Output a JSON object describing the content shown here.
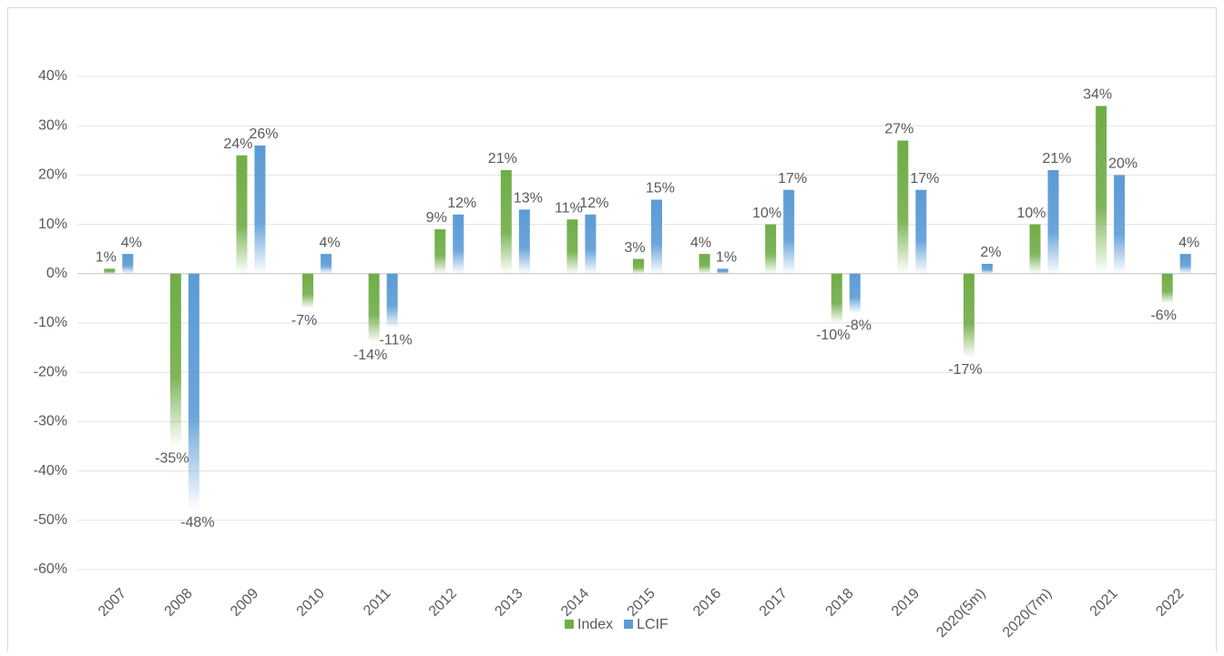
{
  "chart_data": {
    "type": "bar",
    "categories": [
      "2007",
      "2008",
      "2009",
      "2010",
      "2011",
      "2012",
      "2013",
      "2014",
      "2015",
      "2016",
      "2017",
      "2018",
      "2019",
      "2020(5m)",
      "2020(7m)",
      "2021",
      "2022"
    ],
    "series": [
      {
        "name": "Index",
        "color": "#70ad47",
        "values": [
          1,
          -35,
          24,
          -7,
          -14,
          9,
          21,
          11,
          3,
          4,
          10,
          -10,
          27,
          -17,
          10,
          34,
          -6
        ],
        "value_labels": [
          "1%",
          "-35%",
          "24%",
          "-7%",
          "-14%",
          "9%",
          "21%",
          "11%",
          "3%",
          "4%",
          "10%",
          "-10%",
          "27%",
          "-17%",
          "10%",
          "34%",
          "-6%"
        ]
      },
      {
        "name": "LCIF",
        "color": "#5b9bd5",
        "values": [
          4,
          -48,
          26,
          4,
          -11,
          12,
          13,
          12,
          15,
          1,
          17,
          -8,
          17,
          2,
          21,
          20,
          4
        ],
        "value_labels": [
          "4%",
          "-48%",
          "26%",
          "4%",
          "-11%",
          "12%",
          "13%",
          "12%",
          "15%",
          "1%",
          "17%",
          "-8%",
          "17%",
          "2%",
          "21%",
          "20%",
          "4%"
        ]
      }
    ],
    "ylim": [
      -60,
      40
    ],
    "yticks": [
      {
        "value": -60,
        "label": "-60%"
      },
      {
        "value": -50,
        "label": "-50%"
      },
      {
        "value": -40,
        "label": "-40%"
      },
      {
        "value": -30,
        "label": "-30%"
      },
      {
        "value": -20,
        "label": "-20%"
      },
      {
        "value": -10,
        "label": "-10%"
      },
      {
        "value": 0,
        "label": "0%"
      },
      {
        "value": 10,
        "label": "10%"
      },
      {
        "value": 20,
        "label": "20%"
      },
      {
        "value": 30,
        "label": "30%"
      },
      {
        "value": 40,
        "label": "40%"
      }
    ],
    "grid": true,
    "legend": "bottom"
  }
}
